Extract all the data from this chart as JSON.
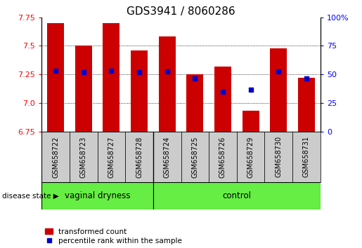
{
  "title": "GDS3941 / 8060286",
  "samples": [
    "GSM658722",
    "GSM658723",
    "GSM658727",
    "GSM658728",
    "GSM658724",
    "GSM658725",
    "GSM658726",
    "GSM658729",
    "GSM658730",
    "GSM658731"
  ],
  "bar_values": [
    7.7,
    7.5,
    7.7,
    7.46,
    7.58,
    7.25,
    7.32,
    6.93,
    7.48,
    7.22
  ],
  "dot_values": [
    7.285,
    7.27,
    7.283,
    7.27,
    7.278,
    7.215,
    7.1,
    7.115,
    7.278,
    7.215
  ],
  "y_min": 6.75,
  "y_max": 7.75,
  "y_ticks": [
    6.75,
    7.0,
    7.25,
    7.5,
    7.75
  ],
  "y_right_ticks": [
    0,
    25,
    50,
    75,
    100
  ],
  "bar_color": "#cc0000",
  "dot_color": "#0000cc",
  "group1_label": "vaginal dryness",
  "group1_count": 4,
  "group2_label": "control",
  "group2_count": 6,
  "group_bg_color": "#66ee44",
  "sample_bg_color": "#cccccc",
  "legend_bar_label": "transformed count",
  "legend_dot_label": "percentile rank within the sample",
  "disease_state_label": "disease state",
  "title_fontsize": 11,
  "tick_fontsize": 8,
  "sample_fontsize": 7,
  "group_fontsize": 8.5
}
